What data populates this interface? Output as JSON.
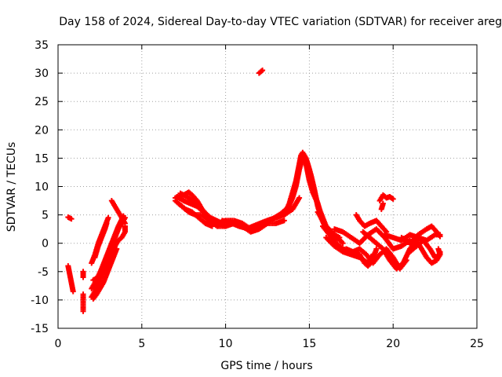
{
  "chart_data": {
    "type": "scatter",
    "title": "Day 158 of 2024, Sidereal Day-to-day VTEC variation (SDTVAR) for receiver areg",
    "xlabel": "GPS time / hours",
    "ylabel": "SDTVAR / TECUs",
    "xlim": [
      0,
      25
    ],
    "ylim": [
      -15,
      35
    ],
    "xticks": [
      0,
      5,
      10,
      15,
      20,
      25
    ],
    "yticks": [
      -15,
      -10,
      -5,
      0,
      5,
      10,
      15,
      20,
      25,
      30,
      35
    ],
    "grid": true,
    "marker": "+",
    "color": "#ff0000",
    "series": [
      {
        "name": "SDTVAR",
        "segments": [
          [
            [
              0.6,
              4.6
            ],
            [
              0.8,
              4.3
            ]
          ],
          [
            [
              0.6,
              -4.0
            ],
            [
              0.7,
              -5.5
            ],
            [
              0.8,
              -7.0
            ],
            [
              0.9,
              -8.5
            ]
          ],
          [
            [
              1.5,
              -5.0
            ],
            [
              1.5,
              -6.0
            ]
          ],
          [
            [
              1.5,
              -9.0
            ],
            [
              1.5,
              -10.5
            ],
            [
              1.5,
              -12.0
            ]
          ],
          [
            [
              2.0,
              -9.5
            ],
            [
              2.2,
              -8.5
            ],
            [
              2.4,
              -7.0
            ],
            [
              2.6,
              -5.5
            ],
            [
              2.8,
              -4.0
            ],
            [
              3.0,
              -2.0
            ],
            [
              3.2,
              -0.5
            ],
            [
              3.4,
              1.0
            ],
            [
              3.6,
              2.5
            ],
            [
              3.8,
              3.5
            ],
            [
              4.0,
              4.5
            ]
          ],
          [
            [
              2.0,
              -8.0
            ],
            [
              2.2,
              -7.0
            ],
            [
              2.4,
              -5.8
            ],
            [
              2.6,
              -4.5
            ],
            [
              2.8,
              -3.0
            ],
            [
              3.0,
              -1.5
            ],
            [
              3.2,
              0.0
            ],
            [
              3.4,
              1.5
            ],
            [
              3.6,
              3.0
            ],
            [
              3.9,
              4.8
            ]
          ],
          [
            [
              2.1,
              -6.5
            ],
            [
              2.4,
              -6.0
            ],
            [
              2.7,
              -5.0
            ],
            [
              3.0,
              -3.5
            ],
            [
              3.2,
              -2.0
            ],
            [
              3.4,
              -0.5
            ],
            [
              3.6,
              0.5
            ],
            [
              3.8,
              1.0
            ],
            [
              4.0,
              2.0
            ],
            [
              4.0,
              3.0
            ]
          ],
          [
            [
              2.1,
              -9.8
            ],
            [
              2.3,
              -9.0
            ],
            [
              2.5,
              -8.0
            ],
            [
              2.7,
              -7.0
            ],
            [
              2.9,
              -5.5
            ],
            [
              3.1,
              -4.0
            ],
            [
              3.3,
              -2.5
            ],
            [
              3.5,
              -1.0
            ]
          ],
          [
            [
              2.0,
              -3.5
            ],
            [
              2.2,
              -2.0
            ],
            [
              2.4,
              0.0
            ],
            [
              2.6,
              1.5
            ],
            [
              2.8,
              3.0
            ],
            [
              3.0,
              4.5
            ]
          ],
          [
            [
              2.2,
              -2.5
            ],
            [
              2.4,
              -0.5
            ],
            [
              2.6,
              1.0
            ],
            [
              2.8,
              2.5
            ],
            [
              2.9,
              3.5
            ]
          ],
          [
            [
              3.2,
              7.5
            ],
            [
              3.4,
              6.5
            ],
            [
              3.6,
              5.5
            ],
            [
              3.8,
              4.5
            ],
            [
              4.0,
              3.5
            ]
          ],
          [
            [
              7.0,
              8.0
            ],
            [
              7.5,
              8.5
            ],
            [
              7.8,
              9.0
            ],
            [
              8.0,
              8.5
            ],
            [
              8.3,
              7.5
            ],
            [
              8.6,
              6.0
            ],
            [
              9.0,
              4.5
            ],
            [
              9.5,
              3.5
            ],
            [
              10.0,
              3.0
            ]
          ],
          [
            [
              7.0,
              7.5
            ],
            [
              7.4,
              6.5
            ],
            [
              7.8,
              5.5
            ],
            [
              8.2,
              5.0
            ],
            [
              8.6,
              5.0
            ],
            [
              9.0,
              4.0
            ],
            [
              9.5,
              3.0
            ]
          ],
          [
            [
              7.2,
              7.0
            ],
            [
              7.6,
              6.0
            ],
            [
              8.0,
              5.5
            ],
            [
              8.4,
              4.5
            ],
            [
              8.8,
              3.5
            ],
            [
              9.2,
              3.0
            ]
          ],
          [
            [
              7.1,
              8.2
            ],
            [
              7.5,
              7.5
            ],
            [
              7.9,
              7.0
            ],
            [
              8.3,
              6.5
            ],
            [
              8.7,
              5.5
            ],
            [
              9.1,
              4.5
            ],
            [
              9.6,
              3.8
            ]
          ],
          [
            [
              7.3,
              8.8
            ],
            [
              7.7,
              8.2
            ],
            [
              8.1,
              7.3
            ],
            [
              8.5,
              6.2
            ],
            [
              8.9,
              5.0
            ],
            [
              9.3,
              4.0
            ],
            [
              9.8,
              3.2
            ]
          ],
          [
            [
              9.5,
              3.5
            ],
            [
              10.0,
              4.0
            ],
            [
              10.5,
              4.0
            ],
            [
              11.0,
              3.5
            ],
            [
              11.5,
              2.5
            ],
            [
              12.0,
              3.0
            ],
            [
              12.5,
              4.0
            ],
            [
              13.0,
              4.5
            ],
            [
              13.5,
              5.0
            ],
            [
              14.0,
              6.0
            ],
            [
              14.2,
              7.0
            ],
            [
              14.4,
              8.0
            ]
          ],
          [
            [
              9.5,
              3.0
            ],
            [
              10.0,
              3.0
            ],
            [
              10.5,
              3.5
            ],
            [
              11.0,
              3.0
            ],
            [
              11.5,
              2.0
            ],
            [
              12.0,
              2.5
            ],
            [
              12.5,
              3.5
            ],
            [
              13.0,
              3.5
            ],
            [
              13.5,
              4.0
            ]
          ],
          [
            [
              9.8,
              4.0
            ],
            [
              10.3,
              3.6
            ],
            [
              10.8,
              3.0
            ],
            [
              11.3,
              2.6
            ],
            [
              11.8,
              3.2
            ],
            [
              12.3,
              3.8
            ],
            [
              12.8,
              4.3
            ],
            [
              13.3,
              5.2
            ],
            [
              13.8,
              6.5
            ]
          ],
          [
            [
              12.0,
              30.0
            ],
            [
              12.2,
              30.5
            ]
          ],
          [
            [
              13.5,
              5.0
            ],
            [
              13.8,
              7.0
            ],
            [
              14.0,
              9.0
            ],
            [
              14.2,
              11.0
            ],
            [
              14.4,
              14.0
            ],
            [
              14.5,
              15.5
            ],
            [
              14.6,
              16.0
            ],
            [
              14.8,
              15.0
            ],
            [
              15.0,
              13.0
            ],
            [
              15.2,
              10.0
            ],
            [
              15.4,
              8.0
            ],
            [
              15.6,
              6.0
            ],
            [
              16.0,
              3.0
            ],
            [
              16.5,
              1.5
            ],
            [
              17.0,
              0.0
            ]
          ],
          [
            [
              13.7,
              6.0
            ],
            [
              14.0,
              8.0
            ],
            [
              14.2,
              10.0
            ],
            [
              14.4,
              13.0
            ],
            [
              14.6,
              15.0
            ],
            [
              14.8,
              14.0
            ],
            [
              15.0,
              11.0
            ],
            [
              15.2,
              9.0
            ],
            [
              15.5,
              7.0
            ],
            [
              15.8,
              4.0
            ],
            [
              16.2,
              2.0
            ],
            [
              16.8,
              1.0
            ]
          ],
          [
            [
              14.0,
              8.5
            ],
            [
              14.3,
              12.0
            ],
            [
              14.5,
              14.5
            ],
            [
              14.7,
              15.5
            ],
            [
              14.9,
              14.0
            ],
            [
              15.1,
              12.0
            ],
            [
              15.3,
              9.5
            ],
            [
              15.5,
              6.5
            ],
            [
              15.7,
              4.5
            ],
            [
              16.0,
              2.5
            ],
            [
              16.5,
              0.5
            ]
          ],
          [
            [
              15.5,
              5.5
            ],
            [
              15.7,
              4.5
            ]
          ],
          [
            [
              15.8,
              3.0
            ],
            [
              16.2,
              1.5
            ],
            [
              16.6,
              0.0
            ],
            [
              17.0,
              -1.0
            ],
            [
              17.5,
              -1.5
            ],
            [
              18.0,
              -2.0
            ],
            [
              18.3,
              -3.5
            ],
            [
              18.5,
              -4.0
            ],
            [
              18.8,
              -3.0
            ],
            [
              19.0,
              -1.0
            ]
          ],
          [
            [
              16.0,
              1.0
            ],
            [
              16.5,
              -0.5
            ],
            [
              17.0,
              -1.5
            ],
            [
              17.5,
              -2.0
            ],
            [
              18.0,
              -2.5
            ],
            [
              18.5,
              -3.5
            ],
            [
              18.8,
              -2.0
            ]
          ],
          [
            [
              16.5,
              2.5
            ],
            [
              17.0,
              2.0
            ],
            [
              17.5,
              1.0
            ],
            [
              18.0,
              0.0
            ],
            [
              18.5,
              1.5
            ],
            [
              19.0,
              2.5
            ],
            [
              19.5,
              1.0
            ],
            [
              20.0,
              -1.0
            ],
            [
              20.5,
              -0.5
            ],
            [
              21.0,
              0.5
            ]
          ],
          [
            [
              17.8,
              5.0
            ],
            [
              18.0,
              4.0
            ],
            [
              18.3,
              3.0
            ],
            [
              18.6,
              3.5
            ],
            [
              19.0,
              4.0
            ],
            [
              19.3,
              3.0
            ],
            [
              19.6,
              2.0
            ]
          ],
          [
            [
              17.2,
              -1.0
            ],
            [
              17.6,
              -1.5
            ],
            [
              18.0,
              -1.0
            ],
            [
              18.4,
              -2.0
            ],
            [
              18.8,
              -3.5
            ],
            [
              19.2,
              -2.0
            ],
            [
              19.6,
              -1.0
            ],
            [
              20.0,
              -2.5
            ],
            [
              20.4,
              -4.5
            ],
            [
              20.8,
              -3.0
            ]
          ],
          [
            [
              18.2,
              2.0
            ],
            [
              18.6,
              1.0
            ],
            [
              19.0,
              0.0
            ],
            [
              19.4,
              -1.0
            ],
            [
              19.8,
              -3.0
            ],
            [
              20.2,
              -4.5
            ],
            [
              20.6,
              -3.5
            ],
            [
              21.0,
              -1.0
            ],
            [
              21.4,
              0.5
            ]
          ],
          [
            [
              19.2,
              7.5
            ],
            [
              19.4,
              8.5
            ],
            [
              19.6,
              8.0
            ],
            [
              19.8,
              8.2
            ],
            [
              20.0,
              7.8
            ]
          ],
          [
            [
              19.3,
              6.0
            ],
            [
              19.4,
              7.0
            ]
          ],
          [
            [
              19.5,
              1.5
            ],
            [
              20.0,
              1.0
            ],
            [
              20.5,
              0.5
            ],
            [
              21.0,
              1.5
            ],
            [
              21.5,
              1.0
            ],
            [
              22.0,
              0.5
            ],
            [
              22.5,
              1.5
            ],
            [
              22.8,
              1.5
            ]
          ],
          [
            [
              20.5,
              1.0
            ],
            [
              21.0,
              0.0
            ],
            [
              21.5,
              1.5
            ],
            [
              22.0,
              2.5
            ],
            [
              22.3,
              3.0
            ],
            [
              22.6,
              2.0
            ],
            [
              22.8,
              1.2
            ]
          ],
          [
            [
              21.0,
              -1.5
            ],
            [
              21.4,
              -0.5
            ],
            [
              21.8,
              0.5
            ],
            [
              22.2,
              -1.0
            ],
            [
              22.5,
              -2.5
            ],
            [
              22.8,
              -2.0
            ],
            [
              22.7,
              -1.0
            ]
          ],
          [
            [
              21.5,
              0.0
            ],
            [
              21.8,
              -1.5
            ],
            [
              22.0,
              -2.5
            ],
            [
              22.3,
              -3.5
            ],
            [
              22.6,
              -3.0
            ],
            [
              22.8,
              -2.0
            ],
            [
              22.8,
              -1.5
            ]
          ]
        ]
      }
    ]
  }
}
